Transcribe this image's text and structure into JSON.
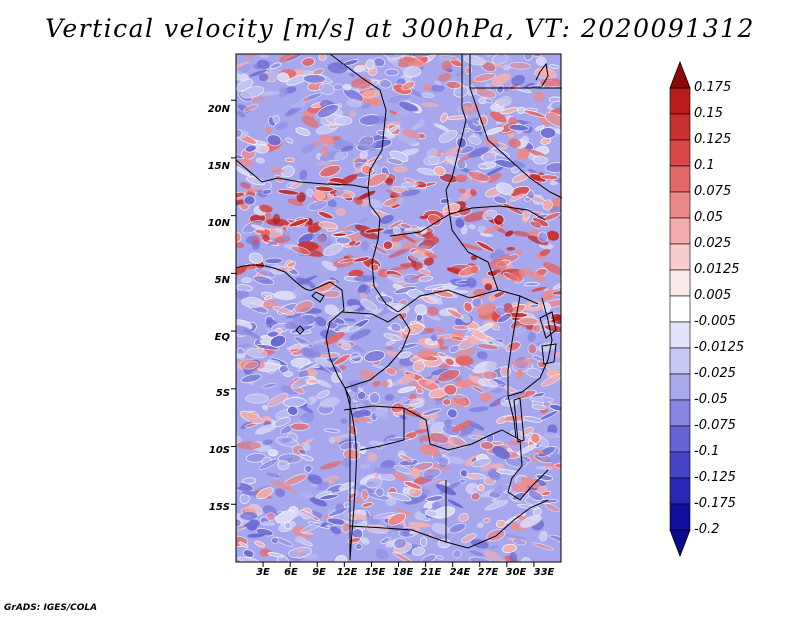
{
  "title": "Vertical velocity [m/s] at 300hPa, VT: 2020091312",
  "credit": "GrADS: IGES/COLA",
  "map": {
    "lon_range": [
      0,
      36
    ],
    "lat_range": [
      -20,
      24
    ],
    "lat_ticks": [
      "20N",
      "15N",
      "10N",
      "5N",
      "EQ",
      "5S",
      "10S",
      "15S"
    ],
    "lat_values": [
      20,
      15,
      10,
      5,
      0,
      -5,
      -10,
      -15
    ],
    "lon_ticks": [
      "3E",
      "6E",
      "9E",
      "12E",
      "15E",
      "18E",
      "21E",
      "24E",
      "27E",
      "30E",
      "33E"
    ],
    "lon_values": [
      3,
      6,
      9,
      12,
      15,
      18,
      21,
      24,
      27,
      30,
      33
    ]
  },
  "colorbar": {
    "labels": [
      "0.175",
      "0.15",
      "0.125",
      "0.1",
      "0.075",
      "0.05",
      "0.025",
      "0.0125",
      "0.005",
      "-0.005",
      "-0.0125",
      "-0.025",
      "-0.05",
      "-0.075",
      "-0.1",
      "-0.125",
      "-0.175",
      "-0.2"
    ],
    "colors": [
      "#a40c0c",
      "#b81c1c",
      "#c93030",
      "#d94848",
      "#e36868",
      "#ec8a8a",
      "#f3acac",
      "#f8cccc",
      "#fce8e8",
      "#ffffff",
      "#e4e4fa",
      "#c8c8f4",
      "#a8a8ec",
      "#8686e2",
      "#6464d6",
      "#4444c8",
      "#2828b6",
      "#1010a0",
      "#0a0a8a"
    ]
  }
}
